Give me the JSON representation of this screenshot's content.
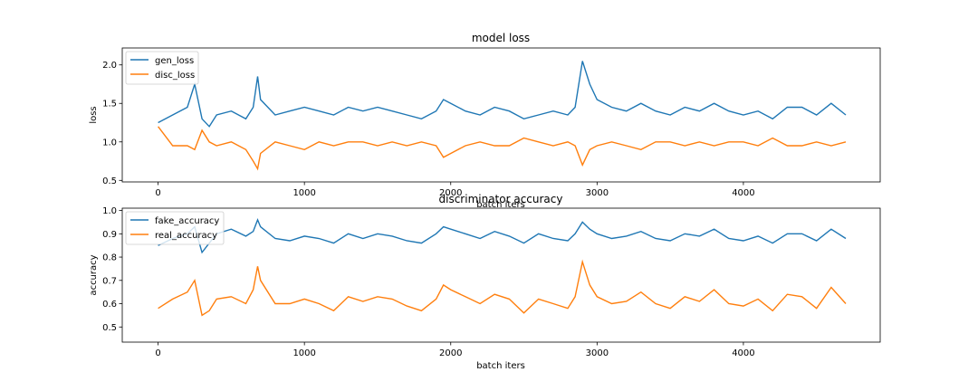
{
  "figure": {
    "charts": [
      "loss",
      "accuracy"
    ]
  },
  "chart_data": [
    {
      "id": "loss",
      "type": "line",
      "title": "model loss",
      "xlabel": "batch iters",
      "ylabel": "loss",
      "xlim": [
        -245,
        4935
      ],
      "ylim": [
        0.48,
        2.22
      ],
      "xticks": [
        0,
        1000,
        2000,
        3000,
        4000
      ],
      "yticks": [
        0.5,
        1.0,
        1.5,
        2.0
      ],
      "ytick_labels": [
        "0.5",
        "1.0",
        "1.5",
        "2.0"
      ],
      "grid": false,
      "legend": "upper-left",
      "series": [
        {
          "name": "gen_loss",
          "color": "#1f77b4",
          "x": [
            0,
            100,
            200,
            250,
            300,
            350,
            400,
            500,
            600,
            650,
            680,
            700,
            800,
            900,
            1000,
            1100,
            1200,
            1300,
            1400,
            1500,
            1600,
            1700,
            1800,
            1900,
            1950,
            2000,
            2100,
            2200,
            2300,
            2400,
            2500,
            2600,
            2700,
            2800,
            2850,
            2900,
            2950,
            3000,
            3100,
            3200,
            3300,
            3400,
            3500,
            3600,
            3700,
            3800,
            3900,
            4000,
            4100,
            4200,
            4300,
            4400,
            4500,
            4600,
            4700
          ],
          "y": [
            1.25,
            1.35,
            1.45,
            1.75,
            1.3,
            1.2,
            1.35,
            1.4,
            1.3,
            1.45,
            1.85,
            1.55,
            1.35,
            1.4,
            1.45,
            1.4,
            1.35,
            1.45,
            1.4,
            1.45,
            1.4,
            1.35,
            1.3,
            1.4,
            1.55,
            1.5,
            1.4,
            1.35,
            1.45,
            1.4,
            1.3,
            1.35,
            1.4,
            1.35,
            1.45,
            2.05,
            1.75,
            1.55,
            1.45,
            1.4,
            1.5,
            1.4,
            1.35,
            1.45,
            1.4,
            1.5,
            1.4,
            1.35,
            1.4,
            1.3,
            1.45,
            1.45,
            1.35,
            1.5,
            1.35
          ]
        },
        {
          "name": "disc_loss",
          "color": "#ff7f0e",
          "x": [
            0,
            100,
            200,
            250,
            300,
            350,
            400,
            500,
            600,
            650,
            680,
            700,
            800,
            900,
            1000,
            1100,
            1200,
            1300,
            1400,
            1500,
            1600,
            1700,
            1800,
            1900,
            1950,
            2000,
            2100,
            2200,
            2300,
            2400,
            2500,
            2600,
            2700,
            2800,
            2850,
            2900,
            2950,
            3000,
            3100,
            3200,
            3300,
            3400,
            3500,
            3600,
            3700,
            3800,
            3900,
            4000,
            4100,
            4200,
            4300,
            4400,
            4500,
            4600,
            4700
          ],
          "y": [
            1.2,
            0.95,
            0.95,
            0.9,
            1.15,
            1.0,
            0.95,
            1.0,
            0.9,
            0.75,
            0.65,
            0.85,
            1.0,
            0.95,
            0.9,
            1.0,
            0.95,
            1.0,
            1.0,
            0.95,
            1.0,
            0.95,
            1.0,
            0.95,
            0.8,
            0.85,
            0.95,
            1.0,
            0.95,
            0.95,
            1.05,
            1.0,
            0.95,
            1.0,
            0.95,
            0.7,
            0.9,
            0.95,
            1.0,
            0.95,
            0.9,
            1.0,
            1.0,
            0.95,
            1.0,
            0.95,
            1.0,
            1.0,
            0.95,
            1.05,
            0.95,
            0.95,
            1.0,
            0.95,
            1.0
          ]
        }
      ]
    },
    {
      "id": "accuracy",
      "type": "line",
      "title": "discriminator accuracy",
      "xlabel": "batch iters",
      "ylabel": "accuracy",
      "xlim": [
        -245,
        4935
      ],
      "ylim": [
        0.435,
        1.01
      ],
      "xticks": [
        0,
        1000,
        2000,
        3000,
        4000
      ],
      "yticks": [
        0.5,
        0.6,
        0.7,
        0.8,
        0.9,
        1.0
      ],
      "ytick_labels": [
        "0.5",
        "0.6",
        "0.7",
        "0.8",
        "0.9",
        "1.0"
      ],
      "grid": false,
      "legend": "upper-left",
      "series": [
        {
          "name": "fake_accuracy",
          "color": "#1f77b4",
          "x": [
            0,
            100,
            200,
            250,
            300,
            350,
            400,
            500,
            600,
            650,
            680,
            700,
            800,
            900,
            1000,
            1100,
            1200,
            1300,
            1400,
            1500,
            1600,
            1700,
            1800,
            1900,
            1950,
            2000,
            2100,
            2200,
            2300,
            2400,
            2500,
            2600,
            2700,
            2800,
            2850,
            2900,
            2950,
            3000,
            3100,
            3200,
            3300,
            3400,
            3500,
            3600,
            3700,
            3800,
            3900,
            4000,
            4100,
            4200,
            4300,
            4400,
            4500,
            4600,
            4700
          ],
          "y": [
            0.85,
            0.88,
            0.9,
            0.93,
            0.82,
            0.86,
            0.9,
            0.92,
            0.89,
            0.91,
            0.96,
            0.93,
            0.88,
            0.87,
            0.89,
            0.88,
            0.86,
            0.9,
            0.88,
            0.9,
            0.89,
            0.87,
            0.86,
            0.9,
            0.93,
            0.92,
            0.9,
            0.88,
            0.91,
            0.89,
            0.86,
            0.9,
            0.88,
            0.87,
            0.9,
            0.95,
            0.92,
            0.9,
            0.88,
            0.89,
            0.91,
            0.88,
            0.87,
            0.9,
            0.89,
            0.92,
            0.88,
            0.87,
            0.89,
            0.86,
            0.9,
            0.9,
            0.87,
            0.92,
            0.88
          ]
        },
        {
          "name": "real_accuracy",
          "color": "#ff7f0e",
          "x": [
            0,
            100,
            200,
            250,
            300,
            350,
            400,
            500,
            600,
            650,
            680,
            700,
            800,
            900,
            1000,
            1100,
            1200,
            1300,
            1400,
            1500,
            1600,
            1700,
            1800,
            1900,
            1950,
            2000,
            2100,
            2200,
            2300,
            2400,
            2500,
            2600,
            2700,
            2800,
            2850,
            2900,
            2950,
            3000,
            3100,
            3200,
            3300,
            3400,
            3500,
            3600,
            3700,
            3800,
            3900,
            4000,
            4100,
            4200,
            4300,
            4400,
            4500,
            4600,
            4700
          ],
          "y": [
            0.58,
            0.62,
            0.65,
            0.7,
            0.55,
            0.57,
            0.62,
            0.63,
            0.6,
            0.66,
            0.76,
            0.7,
            0.6,
            0.6,
            0.62,
            0.6,
            0.57,
            0.63,
            0.61,
            0.63,
            0.62,
            0.59,
            0.57,
            0.62,
            0.68,
            0.66,
            0.63,
            0.6,
            0.64,
            0.62,
            0.56,
            0.62,
            0.6,
            0.58,
            0.63,
            0.78,
            0.68,
            0.63,
            0.6,
            0.61,
            0.65,
            0.6,
            0.58,
            0.63,
            0.61,
            0.66,
            0.6,
            0.59,
            0.62,
            0.57,
            0.64,
            0.63,
            0.58,
            0.67,
            0.6
          ]
        }
      ]
    }
  ]
}
